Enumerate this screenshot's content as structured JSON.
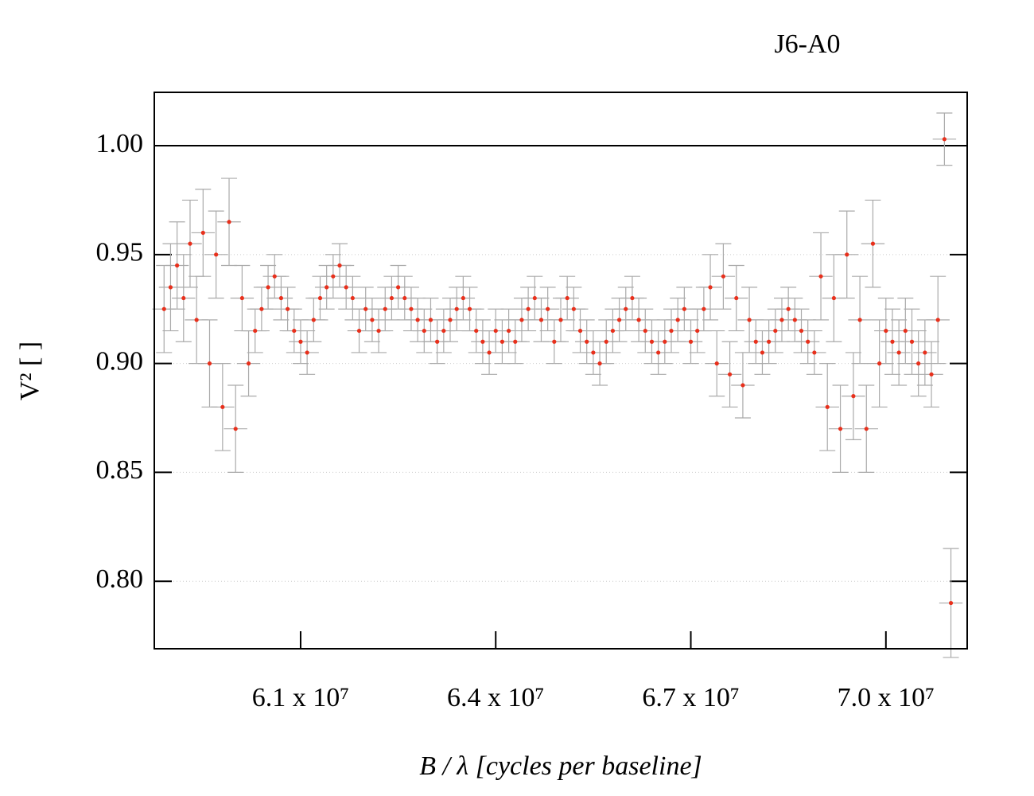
{
  "chart_data": {
    "type": "scatter",
    "title": "J6-A0",
    "x_label": "B / λ [cycles per baseline]",
    "y_label": "V² [ ]",
    "color": "#e8301c",
    "error_color": "#aaaaaa",
    "xlim": [
      58750000,
      71250000
    ],
    "ylim": [
      0.769,
      1.0245
    ],
    "xticks": [
      {
        "value": 61000000,
        "label": "6.1 x 10⁷"
      },
      {
        "value": 64000000,
        "label": "6.4 x 10⁷"
      },
      {
        "value": 67000000,
        "label": "6.7 x 10⁷"
      },
      {
        "value": 70000000,
        "label": "7.0 x 10⁷"
      }
    ],
    "yticks": [
      {
        "value": 0.8,
        "label": "0.80"
      },
      {
        "value": 0.85,
        "label": "0.85"
      },
      {
        "value": 0.9,
        "label": "0.90"
      },
      {
        "value": 0.95,
        "label": "0.95"
      },
      {
        "value": 1,
        "label": "1.00"
      }
    ],
    "grid": true,
    "hline": 1,
    "x_error": 180000,
    "x": [
      58900000,
      59000000,
      59100000,
      59200000,
      59300000,
      59400000,
      59500000,
      59600000,
      59700000,
      59800000,
      59900000,
      60000000,
      60100000,
      60200000,
      60300000,
      60400000,
      60500000,
      60600000,
      60700000,
      60800000,
      60900000,
      61000000,
      61100000,
      61200000,
      61300000,
      61400000,
      61500000,
      61600000,
      61700000,
      61800000,
      61900000,
      62000000,
      62100000,
      62200000,
      62300000,
      62400000,
      62500000,
      62600000,
      62700000,
      62800000,
      62900000,
      63000000,
      63100000,
      63200000,
      63300000,
      63400000,
      63500000,
      63600000,
      63700000,
      63800000,
      63900000,
      64000000,
      64100000,
      64200000,
      64300000,
      64400000,
      64500000,
      64600000,
      64700000,
      64800000,
      64900000,
      65000000,
      65100000,
      65200000,
      65300000,
      65400000,
      65500000,
      65600000,
      65700000,
      65800000,
      65900000,
      66000000,
      66100000,
      66200000,
      66300000,
      66400000,
      66500000,
      66600000,
      66700000,
      66800000,
      66900000,
      67000000,
      67100000,
      67200000,
      67300000,
      67400000,
      67500000,
      67600000,
      67700000,
      67800000,
      67900000,
      68000000,
      68100000,
      68200000,
      68300000,
      68400000,
      68500000,
      68600000,
      68700000,
      68800000,
      68900000,
      69000000,
      69100000,
      69200000,
      69300000,
      69400000,
      69500000,
      69600000,
      69700000,
      69800000,
      69900000,
      70000000,
      70100000,
      70200000,
      70300000,
      70400000,
      70500000,
      70600000,
      70700000,
      70800000,
      70900000,
      71000000
    ],
    "y": [
      0.925,
      0.935,
      0.945,
      0.93,
      0.955,
      0.92,
      0.96,
      0.9,
      0.95,
      0.88,
      0.965,
      0.87,
      0.93,
      0.9,
      0.915,
      0.925,
      0.935,
      0.94,
      0.93,
      0.925,
      0.915,
      0.91,
      0.905,
      0.92,
      0.93,
      0.935,
      0.94,
      0.945,
      0.935,
      0.93,
      0.915,
      0.925,
      0.92,
      0.915,
      0.925,
      0.93,
      0.935,
      0.93,
      0.925,
      0.92,
      0.915,
      0.92,
      0.91,
      0.915,
      0.92,
      0.925,
      0.93,
      0.925,
      0.915,
      0.91,
      0.905,
      0.915,
      0.91,
      0.915,
      0.91,
      0.92,
      0.925,
      0.93,
      0.92,
      0.925,
      0.91,
      0.92,
      0.93,
      0.925,
      0.915,
      0.91,
      0.905,
      0.9,
      0.91,
      0.915,
      0.92,
      0.925,
      0.93,
      0.92,
      0.915,
      0.91,
      0.905,
      0.91,
      0.915,
      0.92,
      0.925,
      0.91,
      0.915,
      0.925,
      0.935,
      0.9,
      0.94,
      0.895,
      0.93,
      0.89,
      0.92,
      0.91,
      0.905,
      0.91,
      0.915,
      0.92,
      0.925,
      0.92,
      0.915,
      0.91,
      0.905,
      0.94,
      0.88,
      0.93,
      0.87,
      0.95,
      0.885,
      0.92,
      0.87,
      0.955,
      0.9,
      0.915,
      0.91,
      0.905,
      0.915,
      0.91,
      0.9,
      0.905,
      0.895,
      0.92,
      1.003,
      0.79
    ],
    "y_error": [
      0.02,
      0.02,
      0.02,
      0.02,
      0.02,
      0.02,
      0.02,
      0.02,
      0.02,
      0.02,
      0.02,
      0.02,
      0.015,
      0.015,
      0.01,
      0.01,
      0.01,
      0.01,
      0.01,
      0.01,
      0.01,
      0.01,
      0.01,
      0.01,
      0.01,
      0.01,
      0.01,
      0.01,
      0.01,
      0.01,
      0.01,
      0.01,
      0.01,
      0.01,
      0.01,
      0.01,
      0.01,
      0.01,
      0.01,
      0.01,
      0.01,
      0.01,
      0.01,
      0.01,
      0.01,
      0.01,
      0.01,
      0.01,
      0.01,
      0.01,
      0.01,
      0.01,
      0.01,
      0.01,
      0.01,
      0.01,
      0.01,
      0.01,
      0.01,
      0.01,
      0.01,
      0.01,
      0.01,
      0.01,
      0.01,
      0.01,
      0.01,
      0.01,
      0.01,
      0.01,
      0.01,
      0.01,
      0.01,
      0.01,
      0.01,
      0.01,
      0.01,
      0.01,
      0.01,
      0.01,
      0.01,
      0.01,
      0.01,
      0.01,
      0.015,
      0.015,
      0.015,
      0.015,
      0.015,
      0.015,
      0.015,
      0.01,
      0.01,
      0.01,
      0.01,
      0.01,
      0.01,
      0.01,
      0.01,
      0.01,
      0.01,
      0.02,
      0.02,
      0.02,
      0.02,
      0.02,
      0.02,
      0.02,
      0.02,
      0.02,
      0.02,
      0.015,
      0.015,
      0.015,
      0.015,
      0.015,
      0.015,
      0.015,
      0.015,
      0.02,
      0.012,
      0.025
    ]
  }
}
